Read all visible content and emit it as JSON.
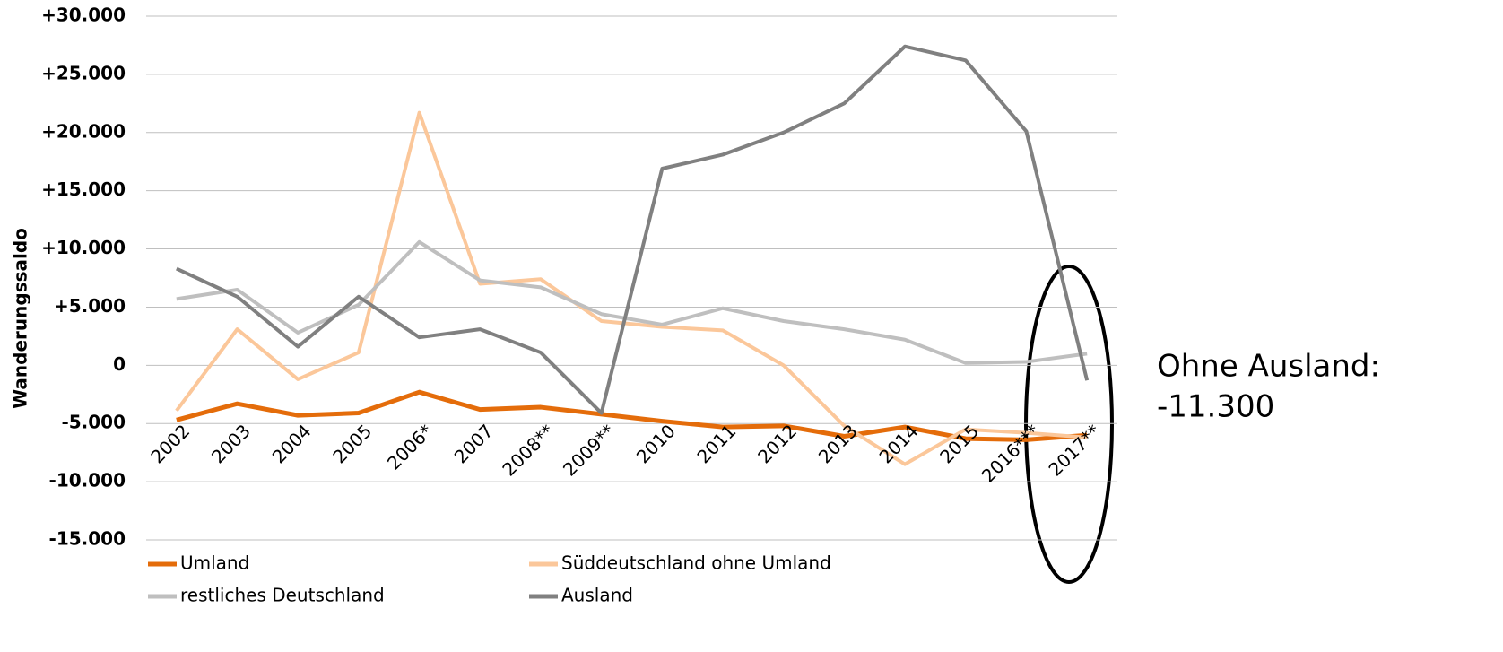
{
  "chart_data": {
    "type": "line",
    "y_label": "Wanderungssaldo",
    "categories": [
      "2002",
      "2003",
      "2004",
      "2005",
      "2006*",
      "2007",
      "2008**",
      "2009**",
      "2010",
      "2011",
      "2012",
      "2013",
      "2014",
      "2015",
      "2016***",
      "2017**"
    ],
    "series": [
      {
        "name": "Umland",
        "color": "#e46c0a",
        "values": [
          -4700,
          -3300,
          -4300,
          -4100,
          -2300,
          -3800,
          -3600,
          -4200,
          -4800,
          -5300,
          -5200,
          -6100,
          -5300,
          -6300,
          -6400,
          -6000
        ]
      },
      {
        "name": "Süddeutschland ohne Umland",
        "color": "#fbc79a",
        "values": [
          -3900,
          3100,
          -1200,
          1100,
          21700,
          7000,
          7400,
          3800,
          3300,
          3000,
          0,
          -5200,
          -8500,
          -5500,
          -5800,
          -6200
        ]
      },
      {
        "name": "restliches Deutschland",
        "color": "#bfbfbf",
        "values": [
          5700,
          6500,
          2800,
          5200,
          10600,
          7300,
          6700,
          4400,
          3500,
          4900,
          3800,
          3100,
          2200,
          200,
          300,
          1000
        ]
      },
      {
        "name": "Ausland",
        "color": "#808080",
        "values": [
          8300,
          5900,
          1600,
          5900,
          2400,
          3100,
          1100,
          -4100,
          16900,
          18100,
          20000,
          22500,
          27400,
          26200,
          20100,
          -1300
        ]
      }
    ],
    "ylim": [
      -15000,
      30000
    ],
    "yticks": [
      {
        "value": -15000,
        "label": "-15.000"
      },
      {
        "value": -10000,
        "label": "-10.000"
      },
      {
        "value": -5000,
        "label": "-5.000"
      },
      0,
      {
        "value": 5000,
        "label": "+5.000"
      },
      {
        "value": 10000,
        "label": "+10.000"
      },
      {
        "value": 15000,
        "label": "+15.000"
      },
      {
        "value": 20000,
        "label": "+20.000"
      },
      {
        "value": 25000,
        "label": "+25.000"
      },
      {
        "value": 30000,
        "label": "+30.000"
      }
    ],
    "grid": true,
    "annotation": [
      "Ohne Ausland:",
      "-11.300"
    ]
  }
}
